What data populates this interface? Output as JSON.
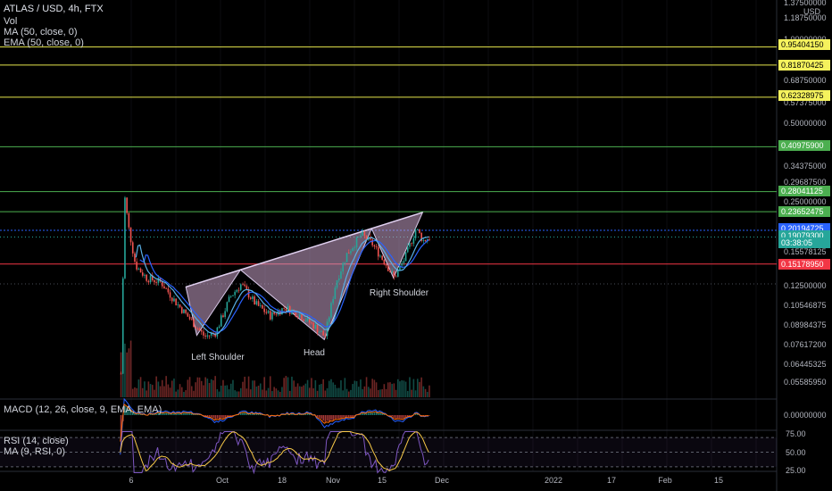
{
  "header": {
    "symbol": "ATLAS / USD, 4h, FTX",
    "vol": "Vol",
    "ma": "MA (50, close, 0)",
    "ema": "EMA (50, close, 0)",
    "macd": "MACD (12, 26, close, 9, EMA, EMA)",
    "rsi": "RSI (14, close)",
    "rsi_ma": "MA (9, RSI, 0)"
  },
  "colors": {
    "background": "#000000",
    "candle_up": "#26a69a",
    "candle_down": "#ef5350",
    "ma": "#2962ff",
    "ema": "#5ab0e6",
    "yellow_level": "#e6e64d",
    "green_level": "#4caf50",
    "red_level": "#f23645",
    "blue_level": "#2962ff",
    "pattern_fill": "#c8a2c8",
    "rsi_line": "#7e57c2"
  },
  "price_axis": {
    "currency": "USD",
    "ticks": [
      "1.37500000",
      "1.18750000",
      "1.00000000",
      "0.68750000",
      "0.57375000",
      "0.50000000",
      "0.34375000",
      "0.29687500",
      "0.25000000",
      "0.15578125",
      "0.12500000",
      "0.10546875",
      "0.08984375",
      "0.07617200",
      "0.06445325",
      "0.05585950"
    ],
    "macd_ticks": [
      "0.00000000"
    ],
    "rsi_ticks": [
      "75.00",
      "50.00",
      "25.00"
    ]
  },
  "price_labels": [
    {
      "value": "0.95404150",
      "type": "yellow"
    },
    {
      "value": "0.81870425",
      "type": "yellow"
    },
    {
      "value": "0.62328975",
      "type": "yellow"
    },
    {
      "value": "0.40975900",
      "type": "green"
    },
    {
      "value": "0.28041125",
      "type": "green"
    },
    {
      "value": "0.23652475",
      "type": "green"
    },
    {
      "value": "0.20194725",
      "type": "blue"
    },
    {
      "value": "0.19079300",
      "type": "last"
    },
    {
      "value": "03:38:05",
      "type": "timer"
    },
    {
      "value": "0.15178950",
      "type": "red"
    }
  ],
  "time_axis": [
    "6",
    "Oct",
    "18",
    "Nov",
    "15",
    "Dec",
    "2022",
    "17",
    "Feb",
    "15"
  ],
  "annotations": {
    "left_shoulder": "Left Shoulder",
    "head": "Head",
    "right_shoulder": "Right Shoulder"
  },
  "chart_data": {
    "type": "candlestick",
    "title": "ATLAS / USD, 4h, FTX",
    "horizontal_levels": [
      0.9540415,
      0.81870425,
      0.62328975,
      0.409759,
      0.28041125,
      0.23652475,
      0.20194725,
      0.1517895
    ],
    "last_price": 0.190793,
    "price_path": [
      [
        "Sep 3",
        0.06
      ],
      [
        "Sep 4",
        0.27
      ],
      [
        "Sep 5",
        0.21
      ],
      [
        "Sep 7",
        0.15
      ],
      [
        "Sep 10",
        0.135
      ],
      [
        "Sep 14",
        0.13
      ],
      [
        "Sep 18",
        0.11
      ],
      [
        "Sep 22",
        0.095
      ],
      [
        "Sep 26",
        0.082
      ],
      [
        "Sep 29",
        0.085
      ],
      [
        "Oct 3",
        0.115
      ],
      [
        "Oct 6",
        0.128
      ],
      [
        "Oct 10",
        0.108
      ],
      [
        "Oct 14",
        0.098
      ],
      [
        "Oct 18",
        0.105
      ],
      [
        "Oct 22",
        0.099
      ],
      [
        "Oct 26",
        0.09
      ],
      [
        "Oct 29",
        0.082
      ],
      [
        "Nov 1",
        0.13
      ],
      [
        "Nov 4",
        0.165
      ],
      [
        "Nov 8",
        0.195
      ],
      [
        "Nov 11",
        0.18
      ],
      [
        "Nov 15",
        0.15
      ],
      [
        "Nov 17",
        0.135
      ],
      [
        "Nov 20",
        0.16
      ],
      [
        "Nov 23",
        0.205
      ],
      [
        "Nov 25",
        0.185
      ],
      [
        "Nov 27",
        0.191
      ]
    ],
    "head_and_shoulders": {
      "left_shoulder": [
        "Sep 24",
        0.083
      ],
      "head": [
        "Oct 29",
        0.08
      ],
      "right_shoulder": [
        "Nov 17",
        0.135
      ],
      "neckline": [
        [
          "Sep 21",
          0.125
        ],
        [
          "Nov 25",
          0.235
        ]
      ]
    },
    "rsi_levels": [
      70,
      50,
      30
    ]
  }
}
